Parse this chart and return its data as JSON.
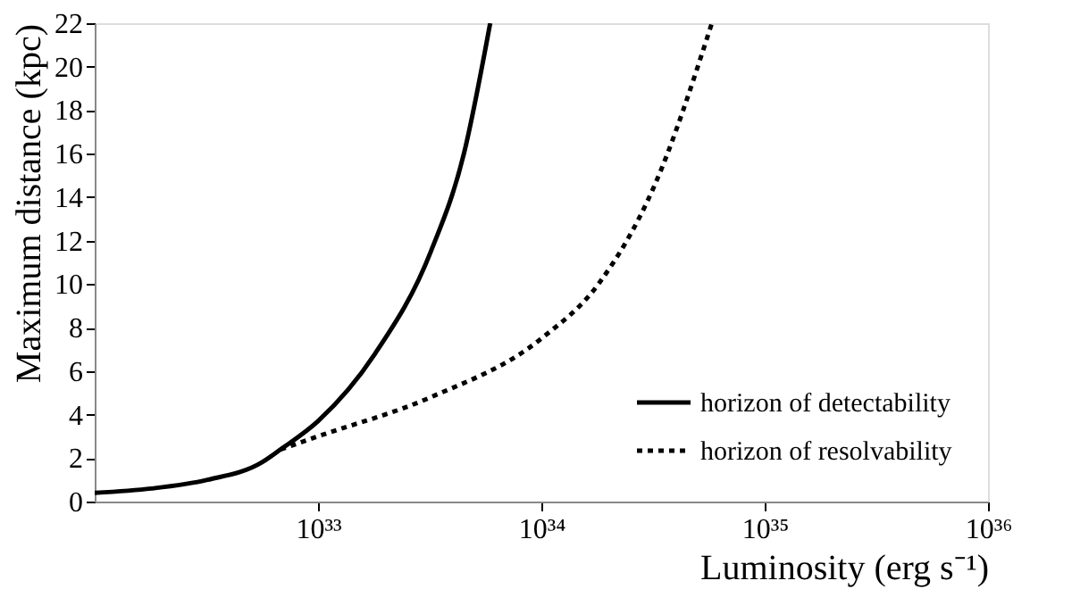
{
  "chart_data": {
    "type": "line",
    "xlabel": "Luminosity (erg s⁻¹)",
    "ylabel": "Maximum distance (kpc)",
    "log": "x",
    "xlim": [
      1e+32,
      1e+36
    ],
    "xticks": [
      {
        "value": 1e+33,
        "label": "10³³"
      },
      {
        "value": 1e+34,
        "label": "10³⁴"
      },
      {
        "value": 1e+35,
        "label": "10³⁵"
      },
      {
        "value": 1e+36,
        "label": "10³⁶"
      }
    ],
    "ylim": [
      0,
      22
    ],
    "yticks": [
      0,
      2,
      4,
      6,
      8,
      10,
      12,
      14,
      16,
      18,
      20,
      22
    ],
    "grid": false,
    "legend": "bottom right",
    "marker": "none",
    "series": [
      {
        "name": "horizon of detectability",
        "color": "#000000",
        "line_style": "solid",
        "x": [
          1e+32,
          1.8e+32,
          3.2e+32,
          5.6e+32,
          6.8e+32,
          1e+33,
          1.8e+33,
          3.2e+33,
          4.5e+33,
          5.9e+33
        ],
        "values": [
          0.4,
          0.6,
          1.0,
          1.8,
          2.4,
          3.7,
          6.8,
          11.5,
          16,
          22
        ]
      },
      {
        "name": "horizon of resolvability",
        "color": "#000000",
        "line_style": "dotted",
        "x": [
          6.8e+32,
          1e+33,
          3.2e+33,
          1e+34,
          1.8e+34,
          3.2e+34,
          5.8e+34
        ],
        "values": [
          2.4,
          3.0,
          4.8,
          7.5,
          10,
          14.5,
          22
        ]
      }
    ]
  }
}
